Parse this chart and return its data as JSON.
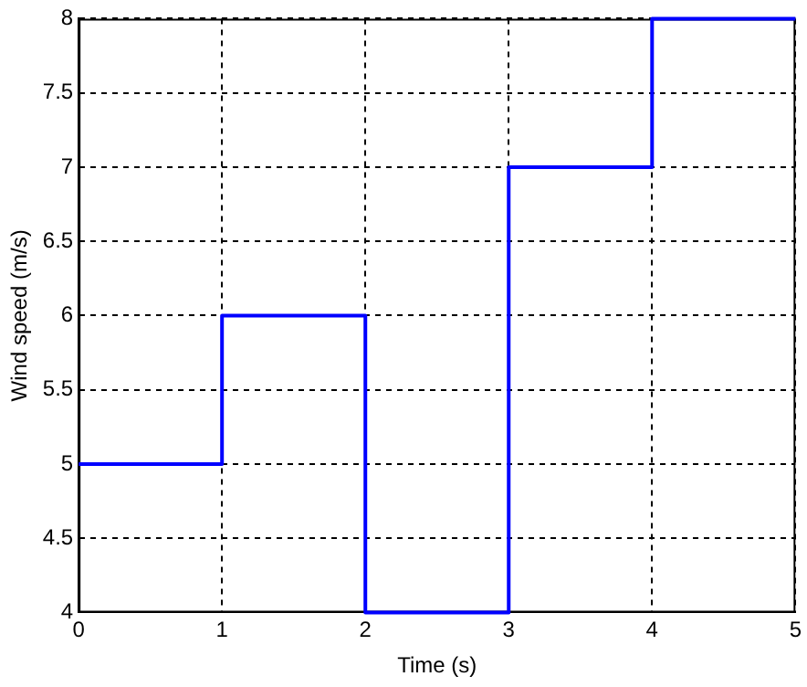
{
  "chart_data": {
    "type": "step",
    "xlabel": "Time (s)",
    "ylabel": "Wind speed (m/s)",
    "x": [
      0,
      1,
      2,
      3,
      4,
      5
    ],
    "series": [
      {
        "color": "#0000ff",
        "values": [
          5,
          6,
          4,
          7,
          8,
          8
        ]
      }
    ],
    "xlim": [
      0,
      5
    ],
    "xticks": [
      0,
      1,
      2,
      3,
      4,
      5
    ],
    "ylim": [
      4,
      8
    ],
    "yticks": [
      4,
      4.5,
      5,
      5.5,
      6,
      6.5,
      7,
      7.5,
      8
    ],
    "grid": true,
    "legend": false
  }
}
